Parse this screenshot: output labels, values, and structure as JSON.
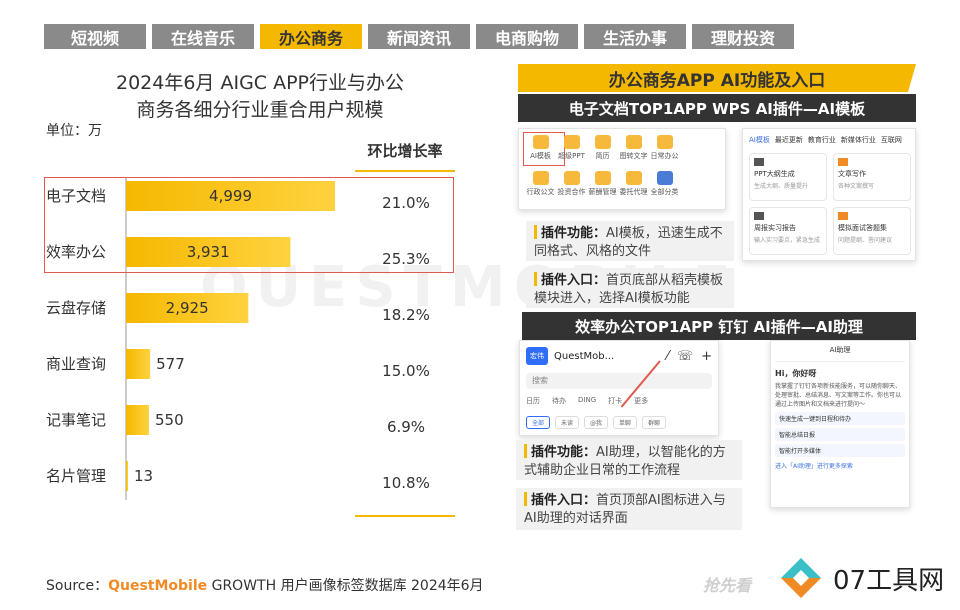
{
  "tabs": [
    {
      "label": "短视频",
      "active": false
    },
    {
      "label": "在线音乐",
      "active": false
    },
    {
      "label": "办公商务",
      "active": true
    },
    {
      "label": "新闻资讯",
      "active": false
    },
    {
      "label": "电商购物",
      "active": false
    },
    {
      "label": "生活办事",
      "active": false
    },
    {
      "label": "理财投资",
      "active": false
    }
  ],
  "colors": {
    "accent": "#f5b800",
    "bar_start": "#f5b800",
    "bar_end": "#ffd54f",
    "highlight": "#e05a4e",
    "dark": "#333333"
  },
  "chart_data": {
    "type": "bar",
    "orientation": "horizontal",
    "title_line1": "2024年6月 AIGC APP行业与办公",
    "title_line2": "商务各细分行业重合用户规模",
    "unit": "单位：万",
    "growth_header": "环比增长率",
    "categories": [
      "电子文档",
      "效率办公",
      "云盘存储",
      "商业查询",
      "记事笔记",
      "名片管理"
    ],
    "values": [
      4999,
      3931,
      2925,
      577,
      550,
      13
    ],
    "value_labels": [
      "4,999",
      "3,931",
      "2,925",
      "577",
      "550",
      "13"
    ],
    "growth": [
      "21.0%",
      "25.3%",
      "18.2%",
      "15.0%",
      "6.9%",
      "10.8%"
    ],
    "highlighted": [
      "电子文档",
      "效率办公"
    ],
    "xlim": [
      0,
      5500
    ],
    "grid": false
  },
  "watermark": "QUESTMOBILE",
  "right_panel": {
    "title": "办公商务APP AI功能及入口",
    "wps": {
      "header": "电子文档TOP1APP WPS AI插件—AI模板",
      "grid_items": [
        "AI模板",
        "超级PPT",
        "简历",
        "图转文字",
        "日常办公",
        "",
        "行政公文",
        "投资合作",
        "薪酬管理",
        "委托代理",
        "全部分类",
        ""
      ],
      "tabs": [
        "AI模板",
        "最近更新",
        "教育行业",
        "新媒体行业",
        "互联网"
      ],
      "cards": [
        {
          "title": "PPT大纲生成",
          "sub": "生成大纲、质量提升"
        },
        {
          "title": "文章写作",
          "sub": "各种文案撰写"
        },
        {
          "title": "周报实习报告",
          "sub": "输入实习要点，紧急生成"
        },
        {
          "title": "模拟面试答题集",
          "sub": "问题提纲、答问建议"
        }
      ],
      "func_label": "插件功能：",
      "func_text": "AI模板，迅速生成不同格式、风格的文件",
      "entry_label": "插件入口：",
      "entry_text": "首页底部从稻壳模板模块进入，选择AI模板功能"
    },
    "dingtalk": {
      "header": "效率办公TOP1APP 钉钉 AI插件—AI助理",
      "avatar": "宏伟",
      "name": "QuestMob...",
      "search": "搜索",
      "row1": [
        "日历",
        "待办",
        "DING",
        "打卡",
        "更多"
      ],
      "row2": [
        "全部",
        "未读",
        "@我",
        "单聊",
        "群聊"
      ],
      "chat_header": "AI助理",
      "chat_hi": "Hi，你好呀",
      "chat_body": "我掌握了钉钉各项新技能服务，可以随你聊天、处理审批、总结消息、写文案等工作。你也可以通过上传图片和文档来进行提问～",
      "chat_opts": [
        "快速生成一键到日程和待办",
        "智能总结日报",
        "智能打开多媒体"
      ],
      "chat_footer": "进入「AI助理」进行更多探索",
      "func_label": "插件功能：",
      "func_text": "AI助理，以智能化的方式辅助企业日常的工作流程",
      "entry_label": "插件入口：",
      "entry_text": "首页顶部AI图标进入与AI助理的对话界面"
    }
  },
  "source": {
    "prefix": "Source：",
    "brand": "QuestMobile",
    "rest": " GROWTH 用户画像标签数据库 2024年6月"
  },
  "logo": {
    "text": "07工具网"
  },
  "stamp": "抢先看"
}
